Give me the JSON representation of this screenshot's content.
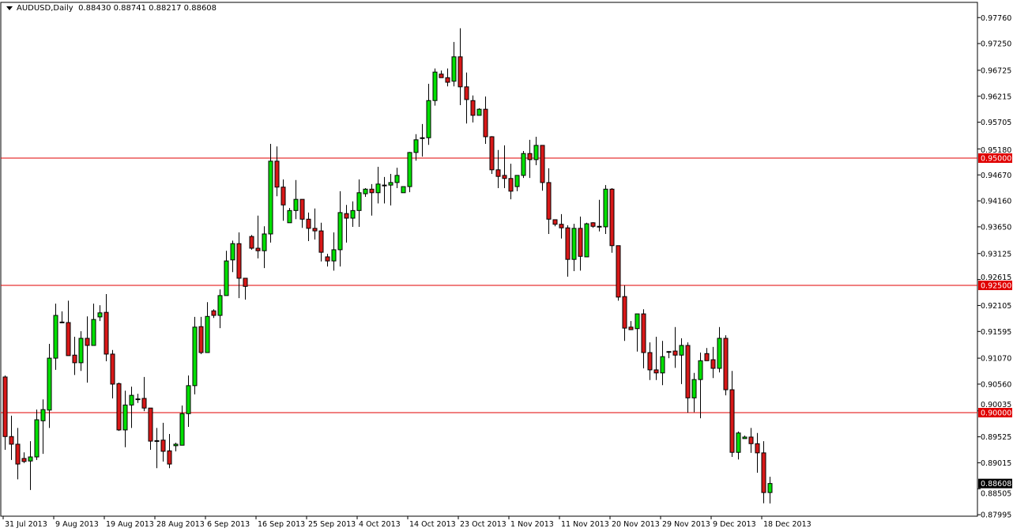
{
  "header": {
    "symbol_timeframe": "AUDUSD,Daily",
    "ohlc": "0.88430 0.88741 0.88217 0.88608"
  },
  "chart_data": {
    "type": "candlestick",
    "symbol": "AUDUSD",
    "timeframe": "Daily",
    "ylim": [
      0.87995,
      0.9776
    ],
    "y_ticks": [
      "0.97760",
      "0.97250",
      "0.96725",
      "0.96215",
      "0.95705",
      "0.95180",
      "0.94670",
      "0.94160",
      "0.93650",
      "0.93125",
      "0.92615",
      "0.92105",
      "0.91595",
      "0.91070",
      "0.90560",
      "0.90035",
      "0.89525",
      "0.89015",
      "0.88505",
      "0.87995"
    ],
    "x_tick_labels": [
      "31 Jul 2013",
      "9 Aug 2013",
      "19 Aug 2013",
      "28 Aug 2013",
      "6 Sep 2013",
      "16 Sep 2013",
      "25 Sep 2013",
      "4 Oct 2013",
      "14 Oct 2013",
      "23 Oct 2013",
      "1 Nov 2013",
      "11 Nov 2013",
      "20 Nov 2013",
      "29 Nov 2013",
      "9 Dec 2013",
      "18 Dec 2013"
    ],
    "horizontal_lines": [
      {
        "value": 0.95,
        "label": "0.95000"
      },
      {
        "value": 0.925,
        "label": "0.92500"
      },
      {
        "value": 0.9,
        "label": "0.90000"
      }
    ],
    "current_price": {
      "value": 0.88608,
      "label": "0.88608"
    },
    "colors": {
      "bull": "#00e000",
      "bear": "#d81818",
      "outline": "#000000",
      "level_line": "#e00000",
      "current_price_bg": "#000000"
    },
    "grid": false,
    "candles_ohlc": [
      [
        0.907,
        0.9073,
        0.8927,
        0.8953
      ],
      [
        0.8953,
        0.8994,
        0.8907,
        0.8938
      ],
      [
        0.8938,
        0.897,
        0.8869,
        0.8899
      ],
      [
        0.891,
        0.8922,
        0.8901,
        0.8904
      ],
      [
        0.8905,
        0.8944,
        0.8848,
        0.8913
      ],
      [
        0.8913,
        0.9006,
        0.8907,
        0.8986
      ],
      [
        0.8984,
        0.9026,
        0.8919,
        0.9006
      ],
      [
        0.9005,
        0.9135,
        0.897,
        0.9107
      ],
      [
        0.9107,
        0.9214,
        0.9084,
        0.9191
      ],
      [
        0.9177,
        0.9199,
        0.9177,
        0.9178
      ],
      [
        0.9177,
        0.922,
        0.9112,
        0.9112
      ],
      [
        0.9113,
        0.9149,
        0.9074,
        0.9098
      ],
      [
        0.9098,
        0.916,
        0.9082,
        0.9146
      ],
      [
        0.9146,
        0.9189,
        0.9059,
        0.9132
      ],
      [
        0.9132,
        0.9214,
        0.9132,
        0.9183
      ],
      [
        0.9188,
        0.9211,
        0.918,
        0.9196
      ],
      [
        0.9197,
        0.9233,
        0.9101,
        0.9115
      ],
      [
        0.9115,
        0.9123,
        0.9028,
        0.9056
      ],
      [
        0.9057,
        0.9059,
        0.8964,
        0.8966
      ],
      [
        0.8966,
        0.9043,
        0.8932,
        0.9015
      ],
      [
        0.9015,
        0.9051,
        0.897,
        0.9034
      ],
      [
        0.9026,
        0.9037,
        0.9019,
        0.9027
      ],
      [
        0.9028,
        0.907,
        0.9003,
        0.9009
      ],
      [
        0.9009,
        0.9009,
        0.8927,
        0.8944
      ],
      [
        0.8944,
        0.897,
        0.8891,
        0.8945
      ],
      [
        0.8946,
        0.898,
        0.8904,
        0.8924
      ],
      [
        0.8925,
        0.8958,
        0.8891,
        0.8899
      ],
      [
        0.8935,
        0.8941,
        0.8924,
        0.8938
      ],
      [
        0.8936,
        0.9014,
        0.8936,
        0.8998
      ],
      [
        0.8998,
        0.9073,
        0.8972,
        0.9053
      ],
      [
        0.9053,
        0.9188,
        0.9036,
        0.9168
      ],
      [
        0.9169,
        0.9188,
        0.9115,
        0.9118
      ],
      [
        0.9118,
        0.9217,
        0.9118,
        0.9189
      ],
      [
        0.92,
        0.9203,
        0.9186,
        0.9191
      ],
      [
        0.9191,
        0.9242,
        0.9166,
        0.923
      ],
      [
        0.923,
        0.9318,
        0.923,
        0.9298
      ],
      [
        0.93,
        0.9338,
        0.9276,
        0.9332
      ],
      [
        0.9332,
        0.9354,
        0.9225,
        0.9264
      ],
      [
        0.9264,
        0.9264,
        0.9222,
        0.9248
      ],
      [
        0.9346,
        0.9349,
        0.932,
        0.9323
      ],
      [
        0.9323,
        0.9387,
        0.9303,
        0.9318
      ],
      [
        0.9318,
        0.9366,
        0.9284,
        0.9351
      ],
      [
        0.9351,
        0.9528,
        0.9334,
        0.9494
      ],
      [
        0.9494,
        0.9523,
        0.9425,
        0.9443
      ],
      [
        0.9443,
        0.9458,
        0.9377,
        0.9408
      ],
      [
        0.9373,
        0.9402,
        0.9373,
        0.9397
      ],
      [
        0.9397,
        0.9457,
        0.938,
        0.9419
      ],
      [
        0.9419,
        0.9419,
        0.9363,
        0.938
      ],
      [
        0.938,
        0.9393,
        0.9337,
        0.9362
      ],
      [
        0.9362,
        0.9401,
        0.934,
        0.9357
      ],
      [
        0.9357,
        0.9373,
        0.9297,
        0.9315
      ],
      [
        0.9306,
        0.9312,
        0.9287,
        0.9298
      ],
      [
        0.9298,
        0.9354,
        0.9279,
        0.932
      ],
      [
        0.932,
        0.9435,
        0.9287,
        0.9393
      ],
      [
        0.9391,
        0.9408,
        0.9334,
        0.9382
      ],
      [
        0.9382,
        0.9415,
        0.9365,
        0.9397
      ],
      [
        0.9397,
        0.9458,
        0.9365,
        0.9432
      ],
      [
        0.943,
        0.9441,
        0.9424,
        0.9439
      ],
      [
        0.9439,
        0.9449,
        0.9387,
        0.9432
      ],
      [
        0.9432,
        0.9483,
        0.9411,
        0.9449
      ],
      [
        0.9447,
        0.9463,
        0.9411,
        0.9447
      ],
      [
        0.9447,
        0.9469,
        0.9407,
        0.9452
      ],
      [
        0.9452,
        0.9481,
        0.9441,
        0.9466
      ],
      [
        0.9432,
        0.9444,
        0.9432,
        0.9444
      ],
      [
        0.9444,
        0.9512,
        0.9433,
        0.9511
      ],
      [
        0.9511,
        0.9547,
        0.9495,
        0.9536
      ],
      [
        0.9539,
        0.9567,
        0.9503,
        0.954
      ],
      [
        0.954,
        0.9646,
        0.9526,
        0.9613
      ],
      [
        0.9613,
        0.9676,
        0.9603,
        0.9669
      ],
      [
        0.9665,
        0.9672,
        0.9658,
        0.9658
      ],
      [
        0.9658,
        0.9676,
        0.9641,
        0.9649
      ],
      [
        0.9651,
        0.9728,
        0.9641,
        0.9699
      ],
      [
        0.9699,
        0.9755,
        0.9604,
        0.964
      ],
      [
        0.964,
        0.9668,
        0.9568,
        0.9615
      ],
      [
        0.9613,
        0.9623,
        0.957,
        0.9584
      ],
      [
        0.9584,
        0.9598,
        0.9584,
        0.9596
      ],
      [
        0.9596,
        0.9621,
        0.9528,
        0.9542
      ],
      [
        0.9542,
        0.9543,
        0.9469,
        0.9477
      ],
      [
        0.9477,
        0.9516,
        0.9441,
        0.9464
      ],
      [
        0.9466,
        0.9525,
        0.9441,
        0.946
      ],
      [
        0.946,
        0.9489,
        0.9419,
        0.9435
      ],
      [
        0.9444,
        0.9466,
        0.9435,
        0.9466
      ],
      [
        0.9466,
        0.9514,
        0.9461,
        0.9509
      ],
      [
        0.9509,
        0.9536,
        0.9461,
        0.9497
      ],
      [
        0.9497,
        0.9542,
        0.9486,
        0.9525
      ],
      [
        0.9525,
        0.9525,
        0.9436,
        0.9452
      ],
      [
        0.9452,
        0.948,
        0.9351,
        0.938
      ],
      [
        0.9379,
        0.9379,
        0.9366,
        0.937
      ],
      [
        0.937,
        0.939,
        0.9342,
        0.9363
      ],
      [
        0.9363,
        0.9368,
        0.9267,
        0.9301
      ],
      [
        0.9301,
        0.9371,
        0.9278,
        0.9362
      ],
      [
        0.9362,
        0.9385,
        0.9279,
        0.9307
      ],
      [
        0.9306,
        0.9373,
        0.9306,
        0.9371
      ],
      [
        0.9373,
        0.9374,
        0.9363,
        0.9366
      ],
      [
        0.9366,
        0.9418,
        0.9356,
        0.9365
      ],
      [
        0.9365,
        0.9447,
        0.9351,
        0.9439
      ],
      [
        0.9439,
        0.9441,
        0.9314,
        0.9328
      ],
      [
        0.9328,
        0.9328,
        0.922,
        0.9227
      ],
      [
        0.9228,
        0.925,
        0.9141,
        0.9166
      ],
      [
        0.9168,
        0.918,
        0.9163,
        0.9163
      ],
      [
        0.9165,
        0.9194,
        0.912,
        0.9194
      ],
      [
        0.9194,
        0.9203,
        0.9087,
        0.9118
      ],
      [
        0.9118,
        0.9138,
        0.9064,
        0.9084
      ],
      [
        0.9084,
        0.9149,
        0.9064,
        0.9078
      ],
      [
        0.9078,
        0.9141,
        0.9054,
        0.911
      ],
      [
        0.912,
        0.9121,
        0.9107,
        0.912
      ],
      [
        0.9121,
        0.9168,
        0.9088,
        0.9113
      ],
      [
        0.9113,
        0.9146,
        0.9056,
        0.9132
      ],
      [
        0.9132,
        0.9138,
        0.9,
        0.9029
      ],
      [
        0.9029,
        0.9078,
        0.9001,
        0.9065
      ],
      [
        0.9065,
        0.9118,
        0.8989,
        0.9102
      ],
      [
        0.9116,
        0.9127,
        0.9102,
        0.9102
      ],
      [
        0.9104,
        0.9129,
        0.9068,
        0.9087
      ],
      [
        0.9087,
        0.9168,
        0.9079,
        0.9146
      ],
      [
        0.9146,
        0.9152,
        0.9034,
        0.9045
      ],
      [
        0.9045,
        0.9082,
        0.8913,
        0.8922
      ],
      [
        0.8922,
        0.8963,
        0.8908,
        0.896
      ],
      [
        0.8949,
        0.8955,
        0.8949,
        0.8952
      ],
      [
        0.8952,
        0.897,
        0.8921,
        0.8939
      ],
      [
        0.8939,
        0.896,
        0.8882,
        0.8921
      ],
      [
        0.8921,
        0.8944,
        0.8822,
        0.8843
      ],
      [
        0.8843,
        0.88741,
        0.88217,
        0.88608
      ]
    ]
  }
}
